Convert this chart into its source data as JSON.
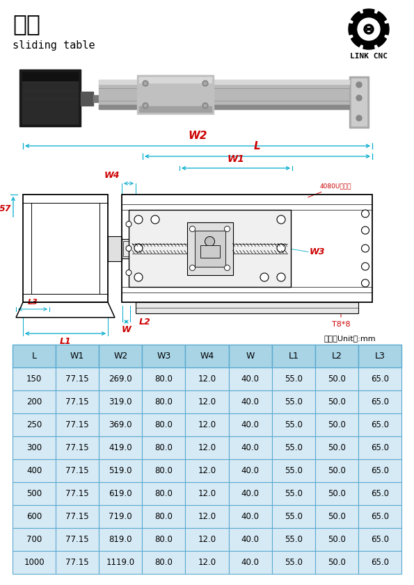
{
  "title_chinese": "滑台",
  "title_english": "sliding table",
  "logo_text": "LINK CNC",
  "unit_text": "单位（Unit）:mm",
  "label_57": "57",
  "label_W2": "W2",
  "label_L": "L",
  "label_W1": "W1",
  "label_W4": "W4",
  "label_W3": "W3",
  "label_W": "W",
  "label_L1": "L1",
  "label_L2": "L2",
  "label_L3": "L3",
  "label_4080": "4080U铝型材",
  "label_T8": "T8*8",
  "table_headers": [
    "L",
    "W1",
    "W2",
    "W3",
    "W4",
    "W",
    "L1",
    "L2",
    "L3"
  ],
  "table_data": [
    [
      150,
      77.15,
      269.0,
      80.0,
      12.0,
      40.0,
      55.0,
      50.0,
      65.0
    ],
    [
      200,
      77.15,
      319.0,
      80.0,
      12.0,
      40.0,
      55.0,
      50.0,
      65.0
    ],
    [
      250,
      77.15,
      369.0,
      80.0,
      12.0,
      40.0,
      55.0,
      50.0,
      65.0
    ],
    [
      300,
      77.15,
      419.0,
      80.0,
      12.0,
      40.0,
      55.0,
      50.0,
      65.0
    ],
    [
      400,
      77.15,
      519.0,
      80.0,
      12.0,
      40.0,
      55.0,
      50.0,
      65.0
    ],
    [
      500,
      77.15,
      619.0,
      80.0,
      12.0,
      40.0,
      55.0,
      50.0,
      65.0
    ],
    [
      600,
      77.15,
      719.0,
      80.0,
      12.0,
      40.0,
      55.0,
      50.0,
      65.0
    ],
    [
      700,
      77.15,
      819.0,
      80.0,
      12.0,
      40.0,
      55.0,
      50.0,
      65.0
    ],
    [
      1000,
      77.15,
      1119.0,
      80.0,
      12.0,
      40.0,
      55.0,
      50.0,
      65.0
    ]
  ],
  "bg_color": "#ffffff",
  "table_header_bg": "#a8d4e6",
  "table_row_bg": "#d6eaf5",
  "table_border_color": "#5baad0",
  "dim_color": "#00aacc",
  "red_color": "#cc0000"
}
